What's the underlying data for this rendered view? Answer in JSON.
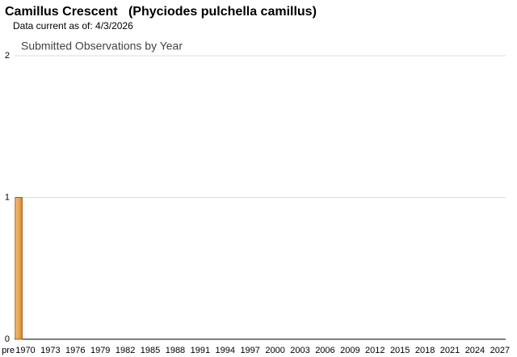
{
  "chart_data": {
    "type": "bar",
    "title": "Camillus Crescent   (Phyciodes pulchella camillus)",
    "subtitle": "Data current as of: 4/3/2026",
    "chart_title": "Submitted Observations by Year",
    "categories": [
      "pre",
      "1970",
      null,
      null,
      "1973",
      null,
      null,
      "1976",
      null,
      null,
      "1979",
      null,
      null,
      "1982",
      null,
      null,
      "1985",
      null,
      null,
      "1988",
      null,
      null,
      "1991",
      null,
      null,
      "1994",
      null,
      null,
      "1997",
      null,
      null,
      "2000",
      null,
      null,
      "2003",
      null,
      null,
      "2006",
      null,
      null,
      "2009",
      null,
      null,
      "2012",
      null,
      null,
      "2015",
      null,
      null,
      "2018",
      null,
      null,
      "2021",
      null,
      null,
      "2024",
      null,
      null,
      "2027"
    ],
    "values": [
      1,
      0,
      0,
      0,
      0,
      0,
      0,
      0,
      0,
      0,
      0,
      0,
      0,
      0,
      0,
      0,
      0,
      0,
      0,
      0,
      0,
      0,
      0,
      0,
      0,
      0,
      0,
      0,
      0,
      0,
      0,
      0,
      0,
      0,
      0,
      0,
      0,
      0,
      0,
      0,
      0,
      0,
      0,
      0,
      0,
      0,
      0,
      0,
      0,
      0,
      0,
      0,
      0,
      0,
      0,
      0,
      0,
      0,
      0
    ],
    "color": "#e89a4a",
    "ylim": [
      0,
      2
    ],
    "yticks": [
      0,
      1,
      2
    ],
    "grid": true
  }
}
